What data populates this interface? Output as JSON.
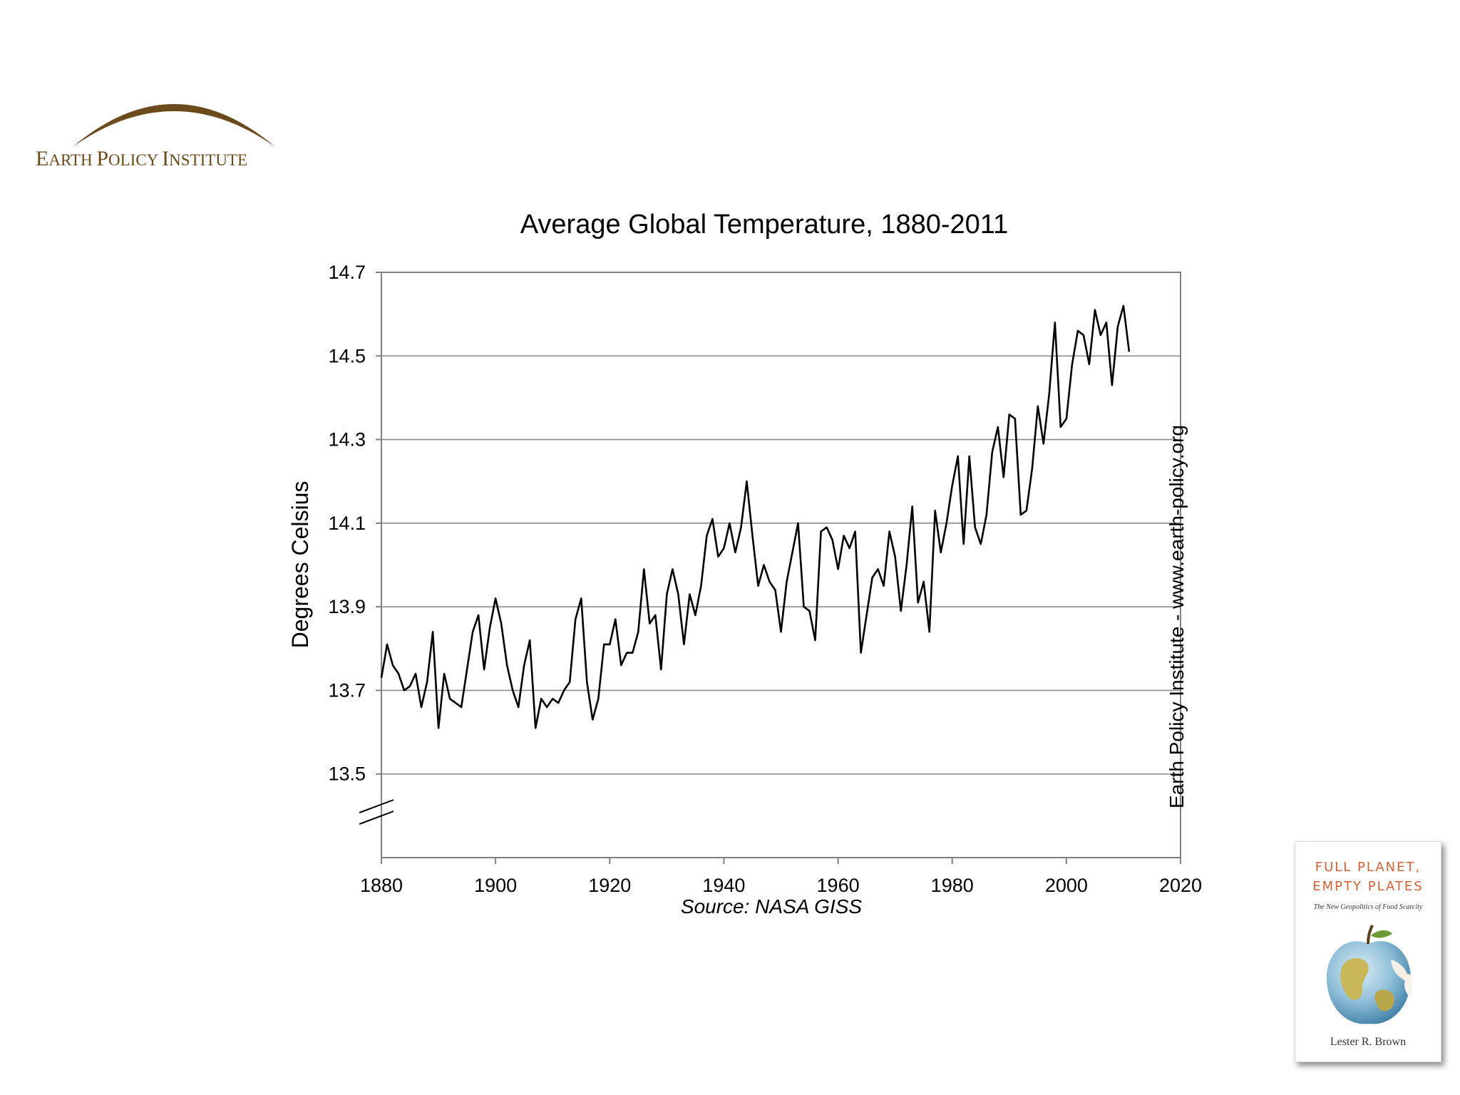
{
  "logo": {
    "text_first": "E",
    "text_rest": "ARTH ",
    "text2_first": "P",
    "text2_rest": "OLICY ",
    "text3_first": "I",
    "text3_rest": "NSTITUTE",
    "color": "#6b4a1c"
  },
  "book": {
    "title_line1": "FULL PLANET,",
    "title_line2": "EMPTY PLATES",
    "subtitle": "The New Geopolitics of Food Scarcity",
    "author": "Lester R. Brown",
    "title_color": "#d0623a"
  },
  "chart_data": {
    "type": "line",
    "title": "Average Global Temperature, 1880-2011",
    "ylabel": "Degrees Celsius",
    "xlabel": "",
    "source": "Source: NASA GISS",
    "right_label": "Earth Policy Institute - www.earth-policy.org",
    "xlim": [
      1880,
      2020
    ],
    "ylim": [
      13.3,
      14.7
    ],
    "x_ticks": [
      1880,
      1900,
      1920,
      1940,
      1960,
      1980,
      2000,
      2020
    ],
    "y_ticks": [
      13.5,
      13.7,
      13.9,
      14.1,
      14.3,
      14.5,
      14.7
    ],
    "y_tick_labels": [
      "13.5",
      "13.7",
      "13.9",
      "14.1",
      "14.3",
      "14.5",
      "14.7"
    ],
    "grid": true,
    "axis_break": true,
    "line_color": "#000000",
    "series": [
      {
        "x": [
          1880,
          1881,
          1882,
          1883,
          1884,
          1885,
          1886,
          1887,
          1888,
          1889,
          1890,
          1891,
          1892,
          1893,
          1894,
          1895,
          1896,
          1897,
          1898,
          1899,
          1900,
          1901,
          1902,
          1903,
          1904,
          1905,
          1906,
          1907,
          1908,
          1909,
          1910,
          1911,
          1912,
          1913,
          1914,
          1915,
          1916,
          1917,
          1918,
          1919,
          1920,
          1921,
          1922,
          1923,
          1924,
          1925,
          1926,
          1927,
          1928,
          1929,
          1930,
          1931,
          1932,
          1933,
          1934,
          1935,
          1936,
          1937,
          1938,
          1939,
          1940,
          1941,
          1942,
          1943,
          1944,
          1945,
          1946,
          1947,
          1948,
          1949,
          1950,
          1951,
          1952,
          1953,
          1954,
          1955,
          1956,
          1957,
          1958,
          1959,
          1960,
          1961,
          1962,
          1963,
          1964,
          1965,
          1966,
          1967,
          1968,
          1969,
          1970,
          1971,
          1972,
          1973,
          1974,
          1975,
          1976,
          1977,
          1978,
          1979,
          1980,
          1981,
          1982,
          1983,
          1984,
          1985,
          1986,
          1987,
          1988,
          1989,
          1990,
          1991,
          1992,
          1993,
          1994,
          1995,
          1996,
          1997,
          1998,
          1999,
          2000,
          2001,
          2002,
          2003,
          2004,
          2005,
          2006,
          2007,
          2008,
          2009,
          2010,
          2011
        ],
        "y": [
          13.73,
          13.81,
          13.76,
          13.74,
          13.7,
          13.71,
          13.74,
          13.66,
          13.72,
          13.84,
          13.61,
          13.74,
          13.68,
          13.67,
          13.66,
          13.75,
          13.84,
          13.88,
          13.75,
          13.85,
          13.92,
          13.86,
          13.76,
          13.7,
          13.66,
          13.76,
          13.82,
          13.61,
          13.68,
          13.66,
          13.68,
          13.67,
          13.7,
          13.72,
          13.87,
          13.92,
          13.72,
          13.63,
          13.68,
          13.81,
          13.81,
          13.87,
          13.76,
          13.79,
          13.79,
          13.84,
          13.99,
          13.86,
          13.88,
          13.75,
          13.93,
          13.99,
          13.93,
          13.81,
          13.93,
          13.88,
          13.95,
          14.07,
          14.11,
          14.02,
          14.04,
          14.1,
          14.03,
          14.09,
          14.2,
          14.07,
          13.95,
          14.0,
          13.96,
          13.94,
          13.84,
          13.96,
          14.03,
          14.1,
          13.9,
          13.89,
          13.82,
          14.08,
          14.09,
          14.06,
          13.99,
          14.07,
          14.04,
          14.08,
          13.79,
          13.88,
          13.97,
          13.99,
          13.95,
          14.08,
          14.02,
          13.89,
          14.0,
          14.14,
          13.91,
          13.96,
          13.84,
          14.13,
          14.03,
          14.1,
          14.19,
          14.26,
          14.05,
          14.26,
          14.09,
          14.05,
          14.12,
          14.27,
          14.33,
          14.21,
          14.36,
          14.35,
          14.12,
          14.13,
          14.23,
          14.38,
          14.29,
          14.41,
          14.58,
          14.33,
          14.35,
          14.48,
          14.56,
          14.55,
          14.48,
          14.61,
          14.55,
          14.58,
          14.43,
          14.57,
          14.62,
          14.51
        ]
      }
    ]
  }
}
